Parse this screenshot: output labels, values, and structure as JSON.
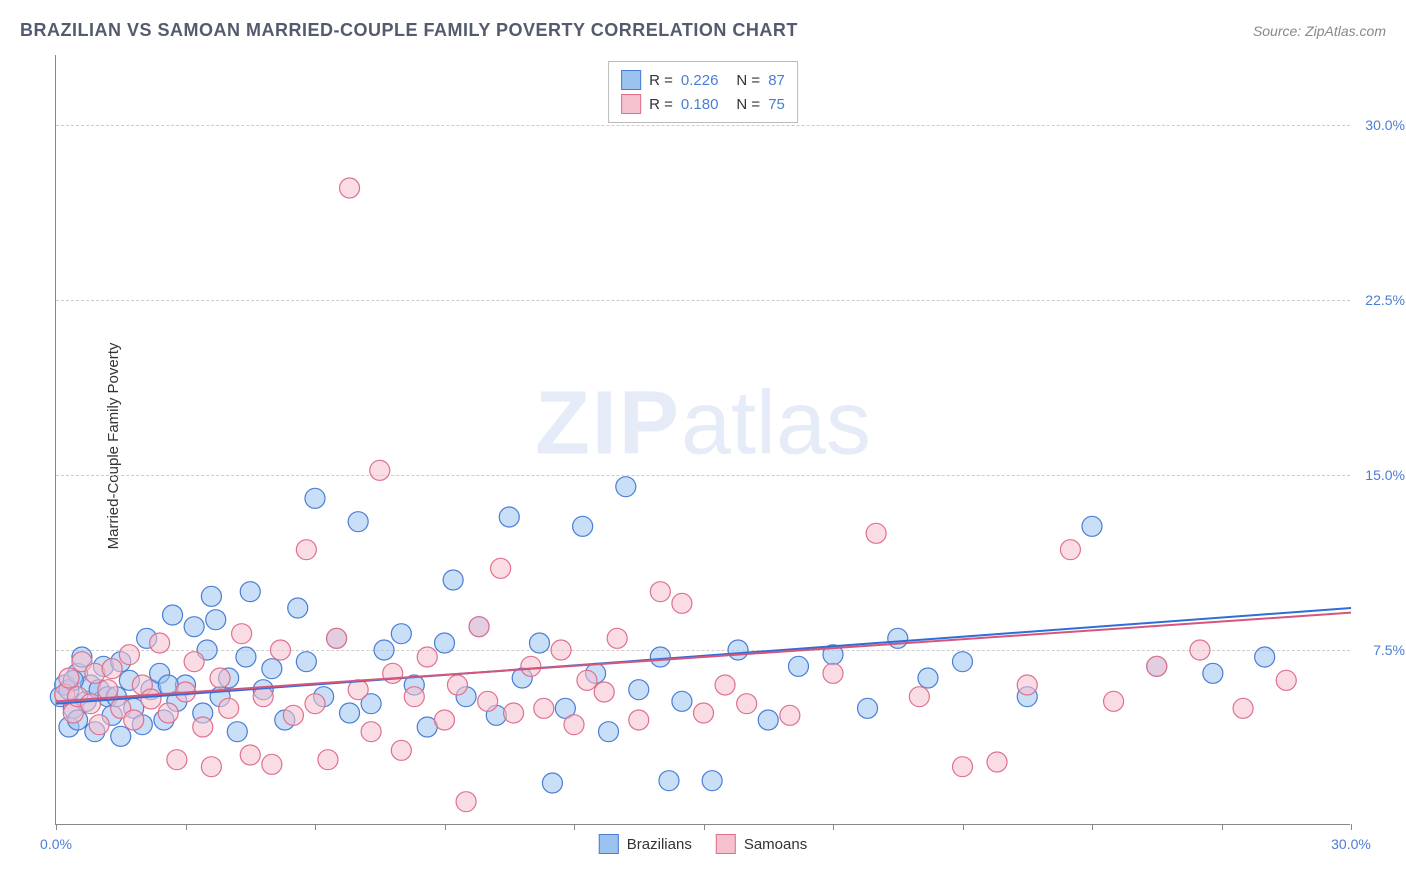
{
  "header": {
    "title": "BRAZILIAN VS SAMOAN MARRIED-COUPLE FAMILY POVERTY CORRELATION CHART",
    "source": "Source: ZipAtlas.com"
  },
  "chart": {
    "type": "scatter",
    "y_axis_label": "Married-Couple Family Poverty",
    "xlim": [
      0,
      30
    ],
    "ylim": [
      0,
      33
    ],
    "y_ticks": [
      7.5,
      15.0,
      22.5,
      30.0
    ],
    "y_tick_labels": [
      "7.5%",
      "15.0%",
      "22.5%",
      "30.0%"
    ],
    "x_ticks": [
      0,
      3,
      6,
      9,
      12,
      15,
      18,
      21,
      24,
      27,
      30
    ],
    "x_tick_labels_visible": {
      "0": "0.0%",
      "30": "30.0%"
    },
    "background_color": "#ffffff",
    "grid_color": "#cccccc",
    "axis_color": "#888888",
    "marker_radius": 10,
    "marker_opacity": 0.55,
    "watermark": "ZIPatlas",
    "series": [
      {
        "name": "Brazilians",
        "fill_color": "#9cc3f0",
        "stroke_color": "#4a7dd6",
        "line_color": "#2e6ed6",
        "regression": {
          "y_at_x0": 5.2,
          "y_at_xmax": 9.3
        },
        "R": "0.226",
        "N": "87",
        "points": [
          [
            0.1,
            5.5
          ],
          [
            0.2,
            6.0
          ],
          [
            0.3,
            4.2
          ],
          [
            0.3,
            5.8
          ],
          [
            0.4,
            5.0
          ],
          [
            0.5,
            6.5
          ],
          [
            0.5,
            4.5
          ],
          [
            0.6,
            7.2
          ],
          [
            0.7,
            5.3
          ],
          [
            0.8,
            6.0
          ],
          [
            0.9,
            4.0
          ],
          [
            1.0,
            5.8
          ],
          [
            1.1,
            6.8
          ],
          [
            1.2,
            5.5
          ],
          [
            1.3,
            4.7
          ],
          [
            1.5,
            7.0
          ],
          [
            1.5,
            3.8
          ],
          [
            1.7,
            6.2
          ],
          [
            1.8,
            5.0
          ],
          [
            2.0,
            4.3
          ],
          [
            2.1,
            8.0
          ],
          [
            2.2,
            5.8
          ],
          [
            2.4,
            6.5
          ],
          [
            2.5,
            4.5
          ],
          [
            2.7,
            9.0
          ],
          [
            2.8,
            5.3
          ],
          [
            3.0,
            6.0
          ],
          [
            3.2,
            8.5
          ],
          [
            3.4,
            4.8
          ],
          [
            3.5,
            7.5
          ],
          [
            3.7,
            8.8
          ],
          [
            3.8,
            5.5
          ],
          [
            4.0,
            6.3
          ],
          [
            4.2,
            4.0
          ],
          [
            4.4,
            7.2
          ],
          [
            4.5,
            10.0
          ],
          [
            4.8,
            5.8
          ],
          [
            5.0,
            6.7
          ],
          [
            5.3,
            4.5
          ],
          [
            5.6,
            9.3
          ],
          [
            5.8,
            7.0
          ],
          [
            6.0,
            14.0
          ],
          [
            6.2,
            5.5
          ],
          [
            6.5,
            8.0
          ],
          [
            6.8,
            4.8
          ],
          [
            7.0,
            13.0
          ],
          [
            7.3,
            5.2
          ],
          [
            7.6,
            7.5
          ],
          [
            8.0,
            8.2
          ],
          [
            8.3,
            6.0
          ],
          [
            8.6,
            4.2
          ],
          [
            9.0,
            7.8
          ],
          [
            9.2,
            10.5
          ],
          [
            9.5,
            5.5
          ],
          [
            9.8,
            8.5
          ],
          [
            10.2,
            4.7
          ],
          [
            10.5,
            13.2
          ],
          [
            10.8,
            6.3
          ],
          [
            11.2,
            7.8
          ],
          [
            11.5,
            1.8
          ],
          [
            11.8,
            5.0
          ],
          [
            12.2,
            12.8
          ],
          [
            12.5,
            6.5
          ],
          [
            12.8,
            4.0
          ],
          [
            13.2,
            14.5
          ],
          [
            13.5,
            5.8
          ],
          [
            14.0,
            7.2
          ],
          [
            14.2,
            1.9
          ],
          [
            14.5,
            5.3
          ],
          [
            15.2,
            1.9
          ],
          [
            15.8,
            7.5
          ],
          [
            16.5,
            4.5
          ],
          [
            17.2,
            6.8
          ],
          [
            18.0,
            7.3
          ],
          [
            18.8,
            5.0
          ],
          [
            19.5,
            8.0
          ],
          [
            20.2,
            6.3
          ],
          [
            21.0,
            7.0
          ],
          [
            22.5,
            5.5
          ],
          [
            24.0,
            12.8
          ],
          [
            25.5,
            6.8
          ],
          [
            26.8,
            6.5
          ],
          [
            28.0,
            7.2
          ],
          [
            0.4,
            6.2
          ],
          [
            1.4,
            5.5
          ],
          [
            2.6,
            6.0
          ],
          [
            3.6,
            9.8
          ]
        ]
      },
      {
        "name": "Samoans",
        "fill_color": "#f5c1ce",
        "stroke_color": "#e0708d",
        "line_color": "#d6557a",
        "regression": {
          "y_at_x0": 5.3,
          "y_at_xmax": 9.1
        },
        "R": "0.180",
        "N": "75",
        "points": [
          [
            0.2,
            5.6
          ],
          [
            0.3,
            6.3
          ],
          [
            0.4,
            4.8
          ],
          [
            0.5,
            5.5
          ],
          [
            0.6,
            7.0
          ],
          [
            0.8,
            5.2
          ],
          [
            0.9,
            6.5
          ],
          [
            1.0,
            4.3
          ],
          [
            1.2,
            5.8
          ],
          [
            1.3,
            6.7
          ],
          [
            1.5,
            5.0
          ],
          [
            1.7,
            7.3
          ],
          [
            1.8,
            4.5
          ],
          [
            2.0,
            6.0
          ],
          [
            2.2,
            5.4
          ],
          [
            2.4,
            7.8
          ],
          [
            2.6,
            4.8
          ],
          [
            2.8,
            2.8
          ],
          [
            3.0,
            5.7
          ],
          [
            3.2,
            7.0
          ],
          [
            3.4,
            4.2
          ],
          [
            3.6,
            2.5
          ],
          [
            3.8,
            6.3
          ],
          [
            4.0,
            5.0
          ],
          [
            4.3,
            8.2
          ],
          [
            4.5,
            3.0
          ],
          [
            4.8,
            5.5
          ],
          [
            5.0,
            2.6
          ],
          [
            5.2,
            7.5
          ],
          [
            5.5,
            4.7
          ],
          [
            5.8,
            11.8
          ],
          [
            6.0,
            5.2
          ],
          [
            6.3,
            2.8
          ],
          [
            6.5,
            8.0
          ],
          [
            6.8,
            27.3
          ],
          [
            7.0,
            5.8
          ],
          [
            7.3,
            4.0
          ],
          [
            7.5,
            15.2
          ],
          [
            7.8,
            6.5
          ],
          [
            8.0,
            3.2
          ],
          [
            8.3,
            5.5
          ],
          [
            8.6,
            7.2
          ],
          [
            9.0,
            4.5
          ],
          [
            9.3,
            6.0
          ],
          [
            9.5,
            1.0
          ],
          [
            9.8,
            8.5
          ],
          [
            10.0,
            5.3
          ],
          [
            10.3,
            11.0
          ],
          [
            10.6,
            4.8
          ],
          [
            11.0,
            6.8
          ],
          [
            11.3,
            5.0
          ],
          [
            11.7,
            7.5
          ],
          [
            12.0,
            4.3
          ],
          [
            12.3,
            6.2
          ],
          [
            12.7,
            5.7
          ],
          [
            13.0,
            8.0
          ],
          [
            13.5,
            4.5
          ],
          [
            14.0,
            10.0
          ],
          [
            14.5,
            9.5
          ],
          [
            15.0,
            4.8
          ],
          [
            15.5,
            6.0
          ],
          [
            16.0,
            5.2
          ],
          [
            17.0,
            4.7
          ],
          [
            18.0,
            6.5
          ],
          [
            19.0,
            12.5
          ],
          [
            20.0,
            5.5
          ],
          [
            21.0,
            2.5
          ],
          [
            21.8,
            2.7
          ],
          [
            22.5,
            6.0
          ],
          [
            23.5,
            11.8
          ],
          [
            24.5,
            5.3
          ],
          [
            25.5,
            6.8
          ],
          [
            26.5,
            7.5
          ],
          [
            27.5,
            5.0
          ],
          [
            28.5,
            6.2
          ]
        ]
      }
    ],
    "legend_bottom": [
      {
        "label": "Brazilians",
        "fill": "#9cc3f0",
        "stroke": "#4a7dd6"
      },
      {
        "label": "Samoans",
        "fill": "#f5c1ce",
        "stroke": "#e0708d"
      }
    ]
  }
}
